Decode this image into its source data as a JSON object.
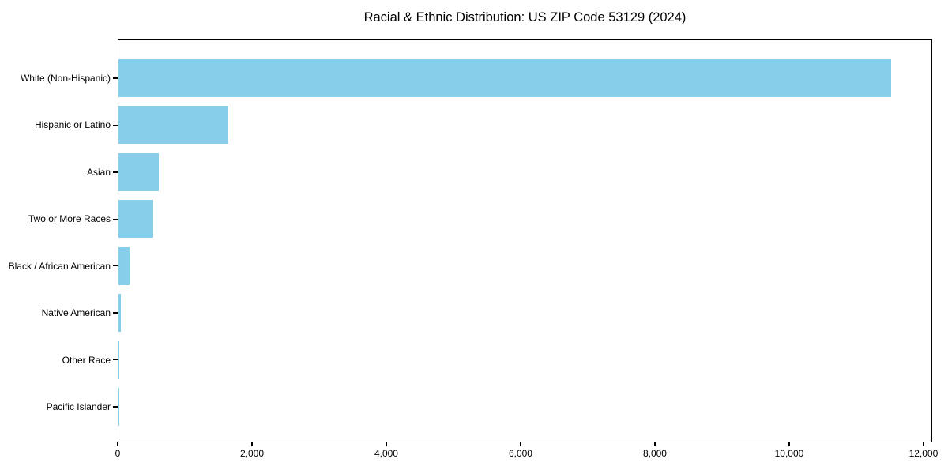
{
  "chart_data": {
    "type": "bar",
    "orientation": "horizontal",
    "title": "Racial & Ethnic Distribution: US ZIP Code 53129 (2024)",
    "categories": [
      "White (Non-Hispanic)",
      "Hispanic or Latino",
      "Asian",
      "Two or More Races",
      "Black / African American",
      "Native American",
      "Other Race",
      "Pacific Islander"
    ],
    "values": [
      11530,
      1635,
      600,
      515,
      170,
      40,
      12,
      3
    ],
    "xlabel": "",
    "ylabel": "",
    "xlim": [
      0,
      12130
    ],
    "x_ticks": [
      0,
      2000,
      4000,
      6000,
      8000,
      10000,
      12000
    ],
    "x_tick_labels": [
      "0",
      "2,000",
      "4,000",
      "6,000",
      "8,000",
      "10,000",
      "12,000"
    ],
    "bar_color": "#87CEEB",
    "spine_color": "#000000",
    "text_color": "#000000",
    "background_color": "#ffffff",
    "grid": false,
    "legend": null,
    "category_order_note": "largest value at top"
  }
}
